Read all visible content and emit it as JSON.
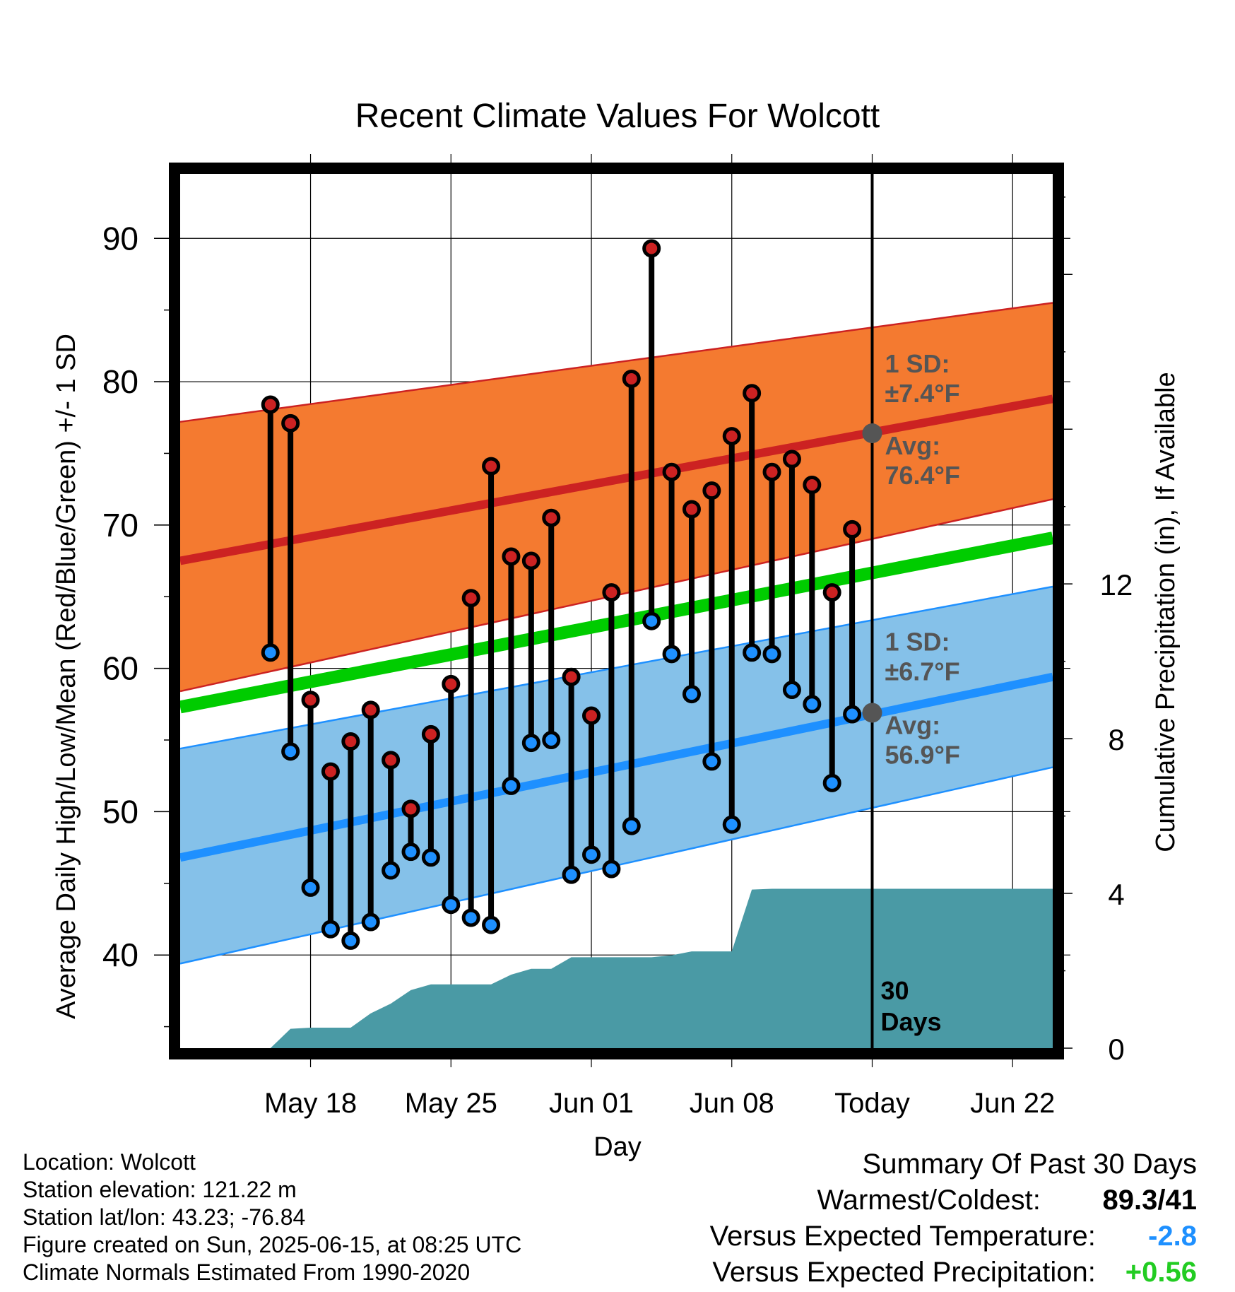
{
  "chart_data": {
    "type": "line",
    "title": "Recent Climate Values For Wolcott",
    "xlabel": "Day",
    "ylabel": "Average Daily High/Low/Mean (Red/Blue/Green) +/- 1 SD",
    "y2label": "Cumulative Precipitation (in), If Available",
    "ylim": [
      33.5,
      94.5
    ],
    "y2lim": [
      0,
      22.6
    ],
    "yticks": [
      40,
      50,
      60,
      70,
      80,
      90
    ],
    "y2ticks": [
      0,
      4,
      8,
      12
    ],
    "x_range_days": [
      -34.5,
      9
    ],
    "x_ticks": [
      {
        "day": -28,
        "label": "May 18"
      },
      {
        "day": -21,
        "label": "May 25"
      },
      {
        "day": -14,
        "label": "Jun 01"
      },
      {
        "day": -7,
        "label": "Jun 08"
      },
      {
        "day": 0,
        "label": "Today"
      },
      {
        "day": 7,
        "label": "Jun 22"
      }
    ],
    "grid": true,
    "normals": {
      "high_mean": {
        "start": 67.5,
        "today": 76.4,
        "end": 78.8,
        "color": "#cc2222"
      },
      "high_band": {
        "upper_start": 77.2,
        "upper_end": 85.5,
        "lower_start": 58.4,
        "lower_end": 71.8,
        "color": "#f47a30"
      },
      "low_mean": {
        "start": 46.8,
        "today": 56.9,
        "end": 59.4,
        "color": "#1e90ff"
      },
      "low_band": {
        "upper_start": 54.4,
        "upper_end": 65.7,
        "lower_start": 39.4,
        "lower_end": 53.1,
        "color": "#85c1e9"
      },
      "mean_line": {
        "start": 57.3,
        "end": 69.1,
        "color": "#00cc00"
      }
    },
    "annotations": {
      "high_sd_label": "1 SD:",
      "high_sd_value": "±7.4°F",
      "high_avg_label": "Avg:",
      "high_avg_value": "76.4°F",
      "low_sd_label": "1 SD:",
      "low_sd_value": "±6.7°F",
      "low_avg_label": "Avg:",
      "low_avg_value": "56.9°F",
      "period_number": "30",
      "period_unit": "Days"
    },
    "series": [
      {
        "name": "High",
        "color": "#cc2222",
        "values": [
          78.4,
          77.1,
          57.8,
          52.8,
          54.9,
          57.1,
          53.6,
          50.2,
          55.4,
          58.9,
          64.9,
          74.1,
          67.8,
          67.5,
          70.5,
          59.4,
          56.7,
          65.3,
          80.2,
          89.3,
          73.7,
          71.1,
          72.4,
          76.2,
          79.2,
          73.7,
          74.6,
          72.8,
          65.3,
          69.7
        ]
      },
      {
        "name": "Low",
        "color": "#1e90ff",
        "values": [
          61.1,
          54.2,
          44.7,
          41.8,
          41.0,
          42.3,
          45.9,
          47.2,
          46.8,
          43.5,
          42.6,
          42.1,
          51.8,
          54.8,
          55.0,
          45.6,
          47.0,
          46.0,
          49.0,
          63.3,
          61.0,
          58.2,
          53.5,
          49.1,
          61.1,
          61.0,
          58.5,
          57.5,
          52.0,
          56.8
        ]
      }
    ],
    "precip_cumulative": {
      "color": "#4a9aa5",
      "days": [
        -30,
        -29,
        -28,
        -27,
        -26,
        -25,
        -24,
        -23,
        -22,
        -21,
        -20,
        -19,
        -18,
        -17,
        -16,
        -15,
        -14,
        -13,
        -12,
        -11,
        -10,
        -9,
        -8,
        -7,
        -6,
        -5,
        -4,
        -3,
        -2,
        -1,
        0,
        9
      ],
      "values": [
        0.0,
        0.5,
        0.53,
        0.53,
        0.53,
        0.9,
        1.15,
        1.5,
        1.65,
        1.65,
        1.65,
        1.65,
        1.9,
        2.05,
        2.05,
        2.35,
        2.35,
        2.35,
        2.35,
        2.35,
        2.4,
        2.5,
        2.5,
        2.5,
        4.1,
        4.12,
        4.12,
        4.12,
        4.12,
        4.12,
        4.12,
        4.12
      ]
    }
  },
  "info": {
    "location": "Location: Wolcott",
    "elevation": "Station elevation: 121.22 m",
    "latlon": "Station lat/lon: 43.23; -76.84",
    "created": "Figure created on Sun, 2025-06-15, at 08:25 UTC",
    "normals": "Climate Normals Estimated From 1990-2020"
  },
  "summary": {
    "title": "Summary Of Past 30 Days",
    "warmest_label": "Warmest/Coldest:",
    "warmest_value": "89.3/41",
    "temp_label": "Versus Expected Temperature:",
    "temp_value": "-2.8",
    "temp_color": "#1e90ff",
    "precip_label": "Versus Expected Precipitation:",
    "precip_value": "+0.56",
    "precip_color": "#22cc22"
  }
}
